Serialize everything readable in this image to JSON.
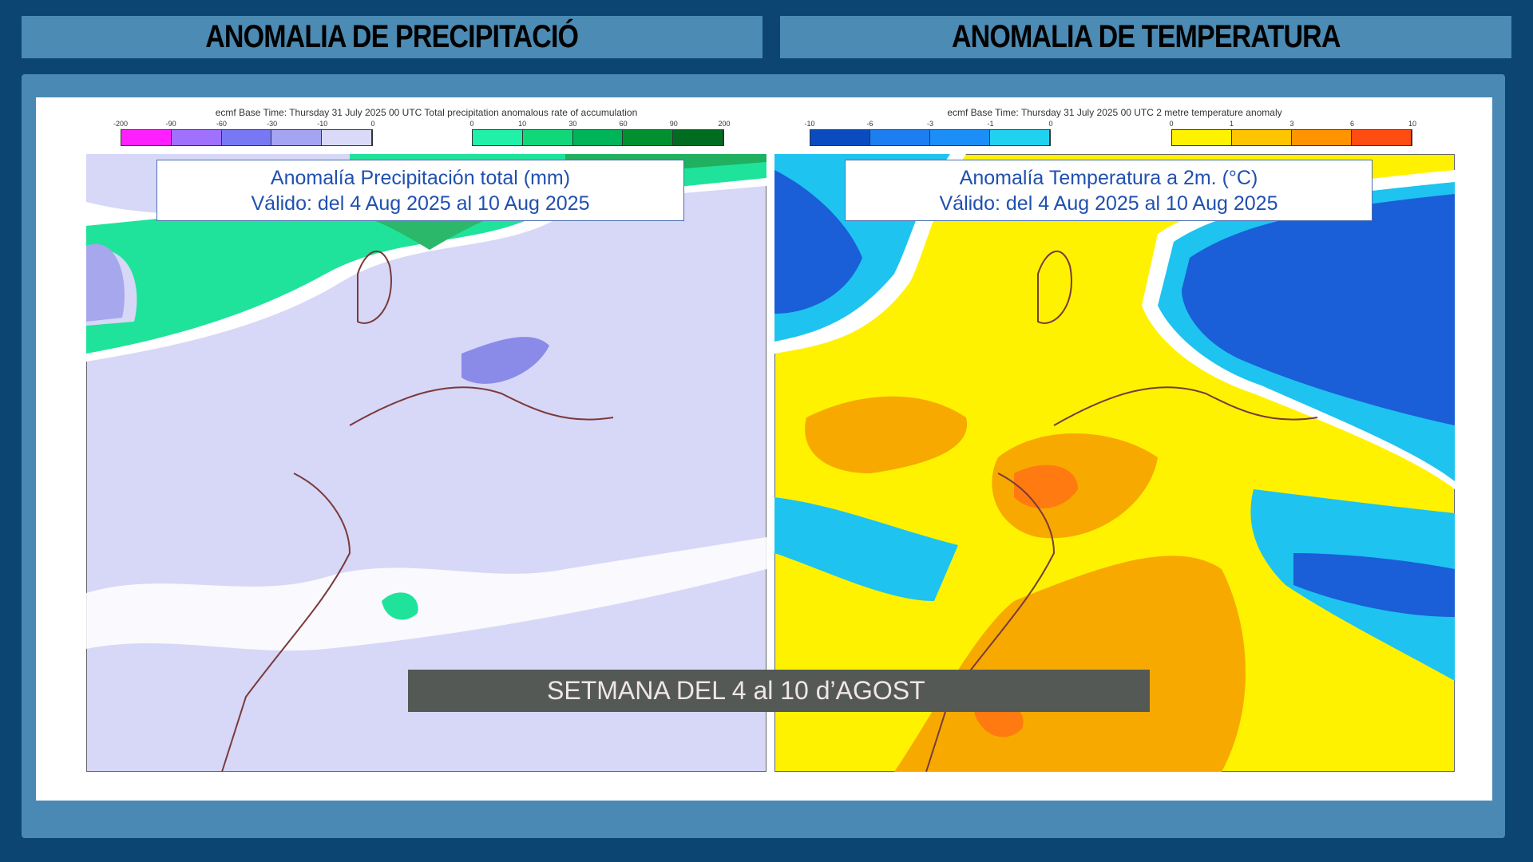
{
  "headers": {
    "left": "ANOMALIA DE PRECIPITACIÓ",
    "right": "ANOMALIA DE TEMPERATURA"
  },
  "maps": [
    {
      "caption": "ecmf  Base Time: Thursday 31 July 2025 00 UTC Total precipitation anomalous rate of accumulation",
      "negative_ticks": [
        "-200",
        "-90",
        "-60",
        "-30",
        "-10",
        "0"
      ],
      "positive_ticks": [
        "0",
        "10",
        "30",
        "60",
        "90",
        "200"
      ],
      "title": "Anomalía Precipitación total (mm)",
      "validity": "Válido: del 4 Aug 2025 al 10 Aug 2025"
    },
    {
      "caption": "ecmf  Base Time: Thursday 31 July 2025 00 UTC 2 metre temperature anomaly",
      "negative_ticks": [
        "-10",
        "-6",
        "-3",
        "-1",
        "0"
      ],
      "positive_ticks": [
        "0",
        "1",
        "3",
        "6",
        "10"
      ],
      "title": "Anomalía Temperatura a 2m. (°C)",
      "validity": "Válido: del 4 Aug 2025 al 10 Aug 2025"
    }
  ],
  "banner": "SETMANA DEL 4 al 10 d’AGOST"
}
